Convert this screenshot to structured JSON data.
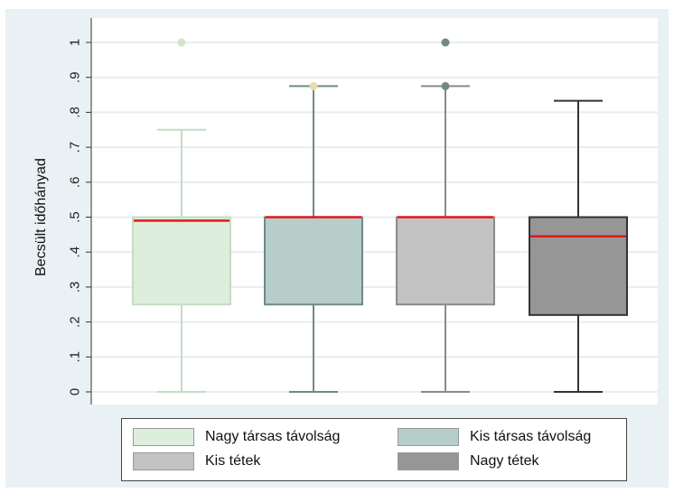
{
  "chart_data": {
    "type": "boxplot",
    "ylabel": "Becsült időhányad",
    "ylim": [
      0,
      1
    ],
    "yticks": [
      0,
      0.1,
      0.2,
      0.3,
      0.4,
      0.5,
      0.6,
      0.7,
      0.8,
      0.9,
      1
    ],
    "ytick_labels": [
      "0",
      ".1",
      ".2",
      ".3",
      ".4",
      ".5",
      ".6",
      ".7",
      ".8",
      ".9",
      "1"
    ],
    "grid": true,
    "legend_position": "bottom",
    "series": [
      {
        "name": "Nagy társas távolság",
        "min": 0,
        "q1": 0.25,
        "median": 0.49,
        "q3": 0.5,
        "max": 0.75,
        "outliers": [
          1.0
        ],
        "fill": "#ddeedd",
        "edge": "#c4dcc4",
        "outlier_color": "#cfe6cc"
      },
      {
        "name": "Kis társas távolság",
        "min": 0,
        "q1": 0.25,
        "median": 0.5,
        "q3": 0.5,
        "max": 0.875,
        "outliers": [
          0.875
        ],
        "fill": "#b7cdc9",
        "edge": "#6d8a86",
        "outlier_color": "#e8dcb0"
      },
      {
        "name": "Kis tétek",
        "min": 0,
        "q1": 0.25,
        "median": 0.5,
        "q3": 0.5,
        "max": 0.875,
        "outliers": [
          0.875,
          1.0
        ],
        "fill": "#c2c2c2",
        "edge": "#8a8a8a",
        "outlier_color": "#6f8a84"
      },
      {
        "name": "Nagy tétek",
        "min": 0,
        "q1": 0.22,
        "median": 0.445,
        "q3": 0.5,
        "max": 0.833,
        "outliers": [],
        "fill": "#969696",
        "edge": "#333333",
        "outlier_color": "#333333"
      }
    ],
    "median_color": "#e01818"
  }
}
